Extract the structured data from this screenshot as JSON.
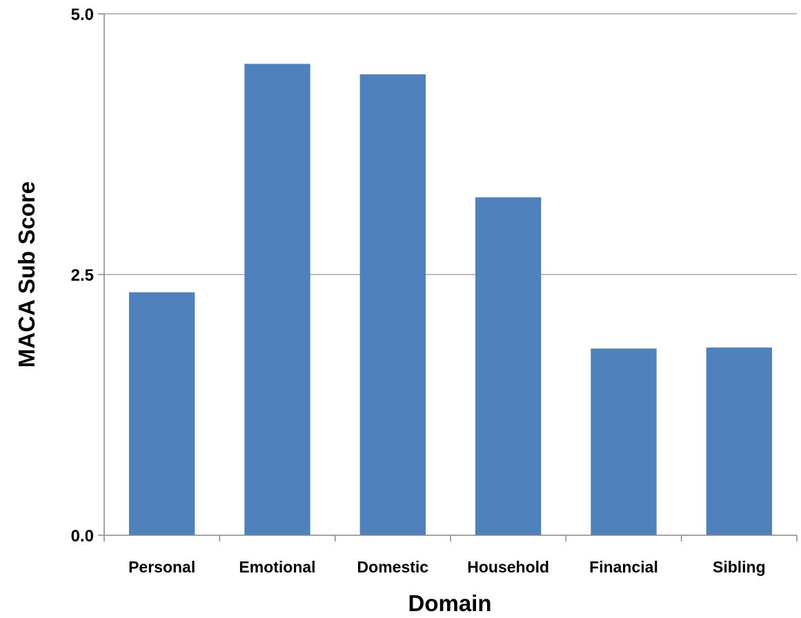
{
  "chart_data": {
    "type": "bar",
    "title": "",
    "xlabel": "Domain",
    "ylabel": "MACA Sub Score",
    "categories": [
      "Personal",
      "Emotional",
      "Domestic",
      "Household",
      "Financial",
      "Sibling"
    ],
    "values": [
      2.33,
      4.52,
      4.42,
      3.24,
      1.79,
      1.8
    ],
    "ylim": [
      0,
      5
    ],
    "yticks": [
      0,
      2.5,
      5
    ],
    "ytick_labels": [
      "0.0",
      "2.5",
      "5.0"
    ],
    "grid": true,
    "legend": "none",
    "colors": {
      "bar": "#4f81bd",
      "gridline": "#a6a6a6",
      "axis": "#868686",
      "text": "#000000"
    }
  }
}
